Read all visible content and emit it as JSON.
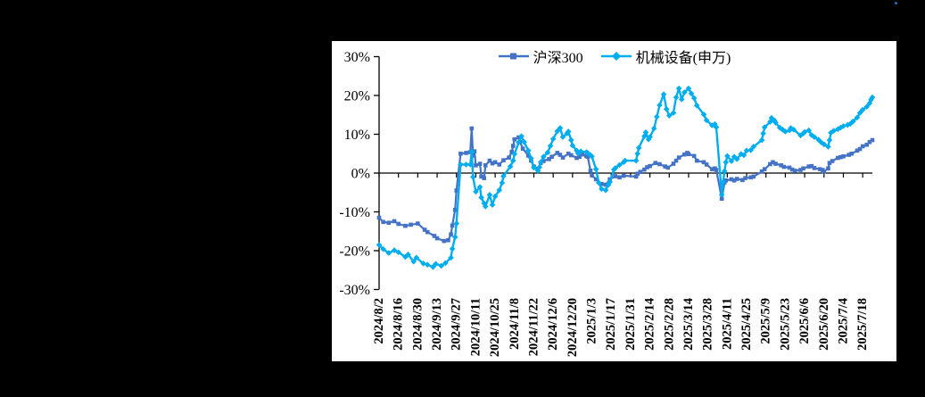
{
  "figure": {
    "background_color": "#000000",
    "panel_background": "#ffffff",
    "stray_dot_color": "#1E73BE"
  },
  "chart_data": {
    "type": "line",
    "title": "",
    "grid": false,
    "legend_position": "top-center",
    "x_axis": {
      "kind": "date",
      "start": "2024/8/2",
      "end": "2025/7/25",
      "total_days": 357,
      "tick_interval_days": 14,
      "label_rotation_deg": -90,
      "tick_labels": [
        "2024/8/2",
        "2024/8/16",
        "2024/8/30",
        "2024/9/13",
        "2024/9/27",
        "2024/10/11",
        "2024/10/25",
        "2024/11/8",
        "2024/11/22",
        "2024/12/6",
        "2024/12/20",
        "2025/1/3",
        "2025/1/17",
        "2025/1/31",
        "2025/2/14",
        "2025/2/28",
        "2025/3/14",
        "2025/3/28",
        "2025/4/11",
        "2025/4/25",
        "2025/5/9",
        "2025/5/23",
        "2025/6/6",
        "2025/6/20",
        "2025/7/4",
        "2025/7/18"
      ]
    },
    "y_axis": {
      "min": -30,
      "max": 30,
      "step": 10,
      "unit": "%",
      "tick_labels": [
        "30%",
        "20%",
        "10%",
        "0%",
        "-10%",
        "-20%",
        "-30%"
      ]
    },
    "series": [
      {
        "name": "沪深300",
        "color": "#4472C4",
        "marker": "square",
        "points": [
          [
            0,
            -11.5
          ],
          [
            3,
            -12.6
          ],
          [
            7,
            -12.8
          ],
          [
            11,
            -12.4
          ],
          [
            14,
            -13.1
          ],
          [
            19,
            -13.6
          ],
          [
            23,
            -13.3
          ],
          [
            28,
            -13.0
          ],
          [
            33,
            -14.6
          ],
          [
            35,
            -15.2
          ],
          [
            40,
            -16.2
          ],
          [
            42,
            -16.8
          ],
          [
            47,
            -17.5
          ],
          [
            50,
            -17.3
          ],
          [
            52,
            -15.8
          ],
          [
            53,
            -13.5
          ],
          [
            55,
            -9.5
          ],
          [
            56,
            -4.5
          ],
          [
            59,
            5.0
          ],
          [
            63,
            5.2
          ],
          [
            66,
            5.4
          ],
          [
            67,
            11.5
          ],
          [
            68,
            4.5
          ],
          [
            69,
            5.6
          ],
          [
            70,
            2.0
          ],
          [
            73,
            2.4
          ],
          [
            74,
            -0.9
          ],
          [
            76,
            -1.3
          ],
          [
            77,
            2.0
          ],
          [
            80,
            3.2
          ],
          [
            82,
            2.5
          ],
          [
            84,
            2.8
          ],
          [
            87,
            2.2
          ],
          [
            90,
            3.3
          ],
          [
            94,
            4.0
          ],
          [
            96,
            5.5
          ],
          [
            97,
            7.0
          ],
          [
            98,
            8.7
          ],
          [
            101,
            9.2
          ],
          [
            102,
            8.0
          ],
          [
            104,
            6.3
          ],
          [
            108,
            4.5
          ],
          [
            110,
            3.2
          ],
          [
            112,
            1.7
          ],
          [
            115,
            1.1
          ],
          [
            117,
            2.6
          ],
          [
            119,
            3.1
          ],
          [
            123,
            3.6
          ],
          [
            125,
            4.2
          ],
          [
            129,
            5.2
          ],
          [
            131,
            4.7
          ],
          [
            133,
            4.0
          ],
          [
            137,
            5.0
          ],
          [
            139,
            4.6
          ],
          [
            143,
            3.9
          ],
          [
            145,
            4.2
          ],
          [
            147,
            4.8
          ],
          [
            150,
            4.4
          ],
          [
            151,
            4.2
          ],
          [
            153,
            0.6
          ],
          [
            154,
            -0.6
          ],
          [
            157,
            -1.6
          ],
          [
            161,
            -2.8
          ],
          [
            164,
            -3.0
          ],
          [
            167,
            -1.6
          ],
          [
            171,
            -0.8
          ],
          [
            174,
            -1.1
          ],
          [
            177,
            -0.7
          ],
          [
            186,
            -0.9
          ],
          [
            187,
            -0.2
          ],
          [
            189,
            0.3
          ],
          [
            192,
            0.9
          ],
          [
            194,
            1.5
          ],
          [
            196,
            1.8
          ],
          [
            200,
            2.6
          ],
          [
            203,
            2.3
          ],
          [
            207,
            1.7
          ],
          [
            209,
            1.4
          ],
          [
            213,
            2.4
          ],
          [
            215,
            3.2
          ],
          [
            217,
            4.0
          ],
          [
            221,
            4.8
          ],
          [
            223,
            5.2
          ],
          [
            224,
            4.9
          ],
          [
            228,
            4.4
          ],
          [
            230,
            3.2
          ],
          [
            235,
            2.8
          ],
          [
            237,
            2.2
          ],
          [
            241,
            1.0
          ],
          [
            243,
            1.2
          ],
          [
            244,
            0.8
          ],
          [
            248,
            -6.6
          ],
          [
            250,
            -2.4
          ],
          [
            251,
            -1.9
          ],
          [
            255,
            -1.6
          ],
          [
            257,
            -1.9
          ],
          [
            259,
            -1.5
          ],
          [
            263,
            -1.8
          ],
          [
            265,
            -1.3
          ],
          [
            269,
            -1.1
          ],
          [
            271,
            -0.9
          ],
          [
            277,
            0.4
          ],
          [
            279,
            1.0
          ],
          [
            283,
            2.3
          ],
          [
            285,
            2.8
          ],
          [
            287,
            2.4
          ],
          [
            291,
            2.0
          ],
          [
            293,
            1.6
          ],
          [
            297,
            1.4
          ],
          [
            299,
            0.9
          ],
          [
            301,
            0.6
          ],
          [
            305,
            0.8
          ],
          [
            307,
            1.2
          ],
          [
            311,
            1.7
          ],
          [
            313,
            1.8
          ],
          [
            315,
            1.3
          ],
          [
            319,
            1.0
          ],
          [
            321,
            0.8
          ],
          [
            322,
            0.4
          ],
          [
            325,
            1.2
          ],
          [
            326,
            2.6
          ],
          [
            328,
            3.1
          ],
          [
            332,
            3.9
          ],
          [
            334,
            4.1
          ],
          [
            336,
            4.3
          ],
          [
            340,
            4.7
          ],
          [
            342,
            5.0
          ],
          [
            346,
            5.8
          ],
          [
            348,
            6.2
          ],
          [
            350,
            6.9
          ],
          [
            353,
            7.3
          ],
          [
            355,
            8.0
          ],
          [
            357,
            8.5
          ]
        ]
      },
      {
        "name": "机械设备(申万)",
        "color": "#00AEEF",
        "marker": "diamond",
        "points": [
          [
            0,
            -18.5
          ],
          [
            3,
            -19.6
          ],
          [
            7,
            -20.6
          ],
          [
            11,
            -19.9
          ],
          [
            14,
            -20.4
          ],
          [
            19,
            -21.6
          ],
          [
            21,
            -21.0
          ],
          [
            25,
            -22.8
          ],
          [
            27,
            -21.8
          ],
          [
            32,
            -23.3
          ],
          [
            35,
            -23.6
          ],
          [
            39,
            -24.2
          ],
          [
            41,
            -23.4
          ],
          [
            45,
            -23.9
          ],
          [
            48,
            -23.2
          ],
          [
            52,
            -21.8
          ],
          [
            53,
            -19.5
          ],
          [
            55,
            -16.5
          ],
          [
            56,
            -13.0
          ],
          [
            59,
            2.2
          ],
          [
            63,
            2.2
          ],
          [
            66,
            2.2
          ],
          [
            67,
            5.5
          ],
          [
            68,
            -1.0
          ],
          [
            70,
            -4.8
          ],
          [
            73,
            -3.6
          ],
          [
            74,
            -6.3
          ],
          [
            76,
            -7.8
          ],
          [
            77,
            -8.6
          ],
          [
            80,
            -5.6
          ],
          [
            82,
            -8.2
          ],
          [
            84,
            -6.0
          ],
          [
            87,
            -4.4
          ],
          [
            89,
            -2.5
          ],
          [
            90,
            -0.8
          ],
          [
            95,
            1.7
          ],
          [
            97,
            3.2
          ],
          [
            98,
            4.9
          ],
          [
            101,
            7.9
          ],
          [
            103,
            9.5
          ],
          [
            105,
            8.0
          ],
          [
            108,
            5.8
          ],
          [
            110,
            3.8
          ],
          [
            112,
            1.4
          ],
          [
            115,
            0.6
          ],
          [
            116,
            1.5
          ],
          [
            117,
            2.8
          ],
          [
            119,
            4.2
          ],
          [
            122,
            5.3
          ],
          [
            124,
            7.0
          ],
          [
            126,
            8.8
          ],
          [
            129,
            10.8
          ],
          [
            131,
            11.6
          ],
          [
            133,
            9.3
          ],
          [
            136,
            10.2
          ],
          [
            137,
            10.7
          ],
          [
            139,
            8.5
          ],
          [
            140,
            7.1
          ],
          [
            143,
            5.8
          ],
          [
            144,
            5.1
          ],
          [
            146,
            5.6
          ],
          [
            150,
            5.4
          ],
          [
            151,
            5.2
          ],
          [
            153,
            4.6
          ],
          [
            154,
            4.3
          ],
          [
            157,
            1.0
          ],
          [
            159,
            -2.5
          ],
          [
            161,
            -4.1
          ],
          [
            164,
            -4.4
          ],
          [
            166,
            -3.0
          ],
          [
            167,
            -2.3
          ],
          [
            170,
            0.9
          ],
          [
            171,
            1.3
          ],
          [
            174,
            2.1
          ],
          [
            177,
            2.8
          ],
          [
            178,
            3.2
          ],
          [
            186,
            3.2
          ],
          [
            187,
            5.0
          ],
          [
            188,
            6.5
          ],
          [
            192,
            9.5
          ],
          [
            193,
            10.5
          ],
          [
            195,
            8.7
          ],
          [
            196,
            9.3
          ],
          [
            199,
            11.5
          ],
          [
            201,
            14.5
          ],
          [
            203,
            17.5
          ],
          [
            206,
            20.3
          ],
          [
            208,
            16.5
          ],
          [
            210,
            14.8
          ],
          [
            213,
            15.5
          ],
          [
            215,
            19.5
          ],
          [
            217,
            21.8
          ],
          [
            219,
            19.0
          ],
          [
            221,
            20.8
          ],
          [
            224,
            21.8
          ],
          [
            226,
            20.5
          ],
          [
            228,
            19.3
          ],
          [
            230,
            17.4
          ],
          [
            235,
            15.1
          ],
          [
            237,
            13.6
          ],
          [
            241,
            12.3
          ],
          [
            243,
            12.6
          ],
          [
            244,
            11.8
          ],
          [
            248,
            -5.6
          ],
          [
            249,
            -2.3
          ],
          [
            250,
            0.5
          ],
          [
            251,
            2.8
          ],
          [
            252,
            4.4
          ],
          [
            255,
            3.1
          ],
          [
            257,
            4.2
          ],
          [
            259,
            3.6
          ],
          [
            262,
            4.9
          ],
          [
            264,
            4.6
          ],
          [
            266,
            5.8
          ],
          [
            269,
            5.9
          ],
          [
            271,
            6.8
          ],
          [
            277,
            8.5
          ],
          [
            278,
            10.2
          ],
          [
            279,
            11.8
          ],
          [
            283,
            13.2
          ],
          [
            284,
            14.2
          ],
          [
            286,
            13.6
          ],
          [
            287,
            13.0
          ],
          [
            290,
            11.7
          ],
          [
            292,
            11.2
          ],
          [
            294,
            10.7
          ],
          [
            297,
            11.0
          ],
          [
            298,
            11.6
          ],
          [
            300,
            11.2
          ],
          [
            305,
            9.7
          ],
          [
            307,
            10.2
          ],
          [
            308,
            10.6
          ],
          [
            311,
            11.0
          ],
          [
            313,
            9.8
          ],
          [
            315,
            9.3
          ],
          [
            318,
            8.6
          ],
          [
            320,
            7.9
          ],
          [
            322,
            7.4
          ],
          [
            325,
            6.8
          ],
          [
            326,
            8.5
          ],
          [
            327,
            10.4
          ],
          [
            329,
            10.9
          ],
          [
            332,
            11.3
          ],
          [
            334,
            11.7
          ],
          [
            336,
            12.1
          ],
          [
            339,
            12.4
          ],
          [
            341,
            12.7
          ],
          [
            343,
            13.3
          ],
          [
            346,
            14.3
          ],
          [
            348,
            15.5
          ],
          [
            350,
            16.3
          ],
          [
            353,
            17.1
          ],
          [
            355,
            18.0
          ],
          [
            356,
            18.9
          ],
          [
            357,
            19.5
          ]
        ]
      }
    ]
  }
}
